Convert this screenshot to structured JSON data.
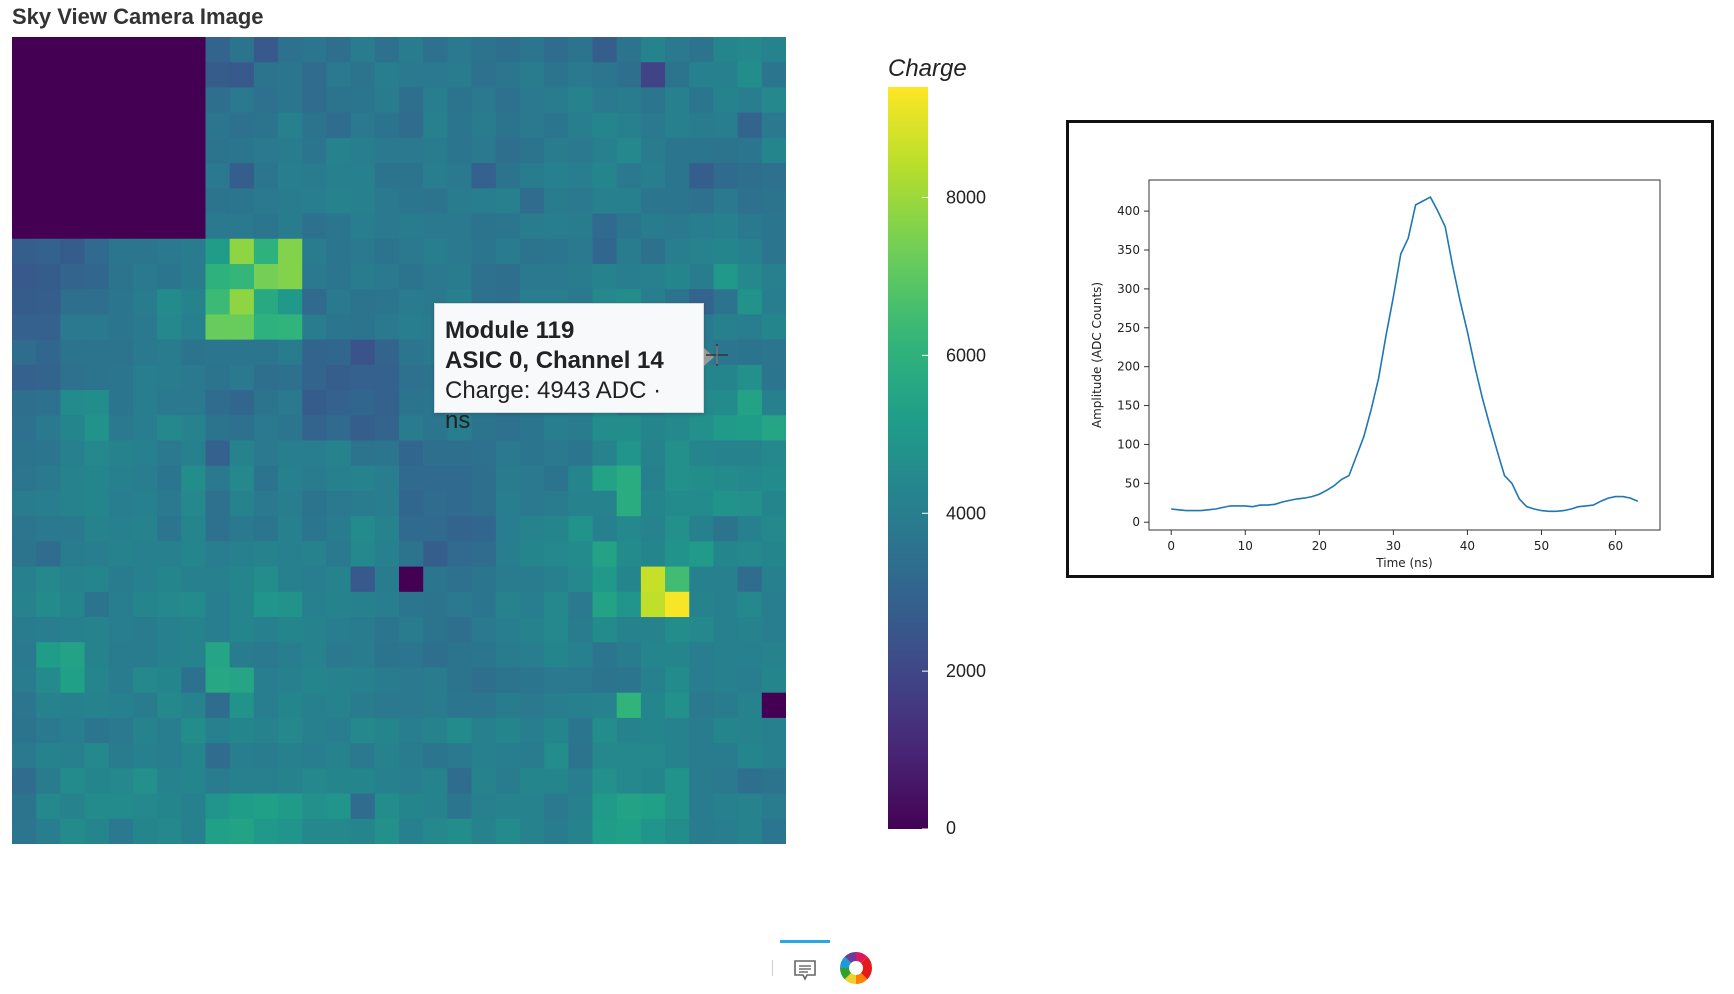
{
  "page": {
    "title": "Sky View Camera Image"
  },
  "camera": {
    "grid_rows": 32,
    "grid_cols": 32,
    "colormap": "viridis",
    "charge_range": [
      0,
      9400
    ],
    "colorbar": {
      "label": "Charge",
      "ticks": [
        "0",
        "2000",
        "4000",
        "6000",
        "8000"
      ],
      "tick_values": [
        0,
        2000,
        4000,
        6000,
        8000
      ]
    },
    "dead_module_value": 0,
    "pixel_values": [
      [
        0,
        0,
        0,
        0,
        0,
        0,
        0,
        0,
        3000,
        3600,
        2600,
        3500,
        3700,
        3400,
        3900,
        3500,
        3900,
        3500,
        3800,
        3600,
        3400,
        3700,
        3300,
        3600,
        2800,
        3600,
        4200,
        3800,
        3600,
        4300,
        4400,
        4200
      ],
      [
        0,
        0,
        0,
        0,
        0,
        0,
        0,
        0,
        2700,
        2600,
        3600,
        3700,
        3300,
        3800,
        3600,
        4000,
        3800,
        3800,
        3900,
        3500,
        3700,
        3900,
        3600,
        3800,
        3700,
        3400,
        1900,
        3600,
        4100,
        4100,
        4600,
        3700
      ],
      [
        0,
        0,
        0,
        0,
        0,
        0,
        0,
        0,
        3400,
        3800,
        3500,
        3700,
        3300,
        3600,
        3700,
        3900,
        3400,
        4000,
        3600,
        3800,
        3500,
        3800,
        3900,
        4200,
        3800,
        3900,
        3700,
        4100,
        3700,
        4200,
        4000,
        4400
      ],
      [
        0,
        0,
        0,
        0,
        0,
        0,
        0,
        0,
        3700,
        3500,
        3600,
        4100,
        3600,
        3300,
        3800,
        3600,
        3300,
        4100,
        3700,
        3900,
        3600,
        3800,
        3700,
        4000,
        4300,
        4100,
        3800,
        4100,
        3900,
        4000,
        3000,
        3800
      ],
      [
        0,
        0,
        0,
        0,
        0,
        0,
        0,
        0,
        3600,
        3700,
        3800,
        3900,
        3700,
        4200,
        4000,
        3800,
        3800,
        3900,
        3700,
        3800,
        3400,
        3600,
        3900,
        3800,
        4100,
        4400,
        3900,
        3700,
        3700,
        3600,
        3700,
        4300
      ],
      [
        0,
        0,
        0,
        0,
        0,
        0,
        0,
        0,
        3800,
        2800,
        3700,
        4000,
        3900,
        4100,
        4100,
        3600,
        3600,
        4000,
        3800,
        2900,
        3600,
        3900,
        4100,
        4000,
        4300,
        3800,
        4000,
        3700,
        2800,
        3200,
        3400,
        3500
      ],
      [
        0,
        0,
        0,
        0,
        0,
        0,
        0,
        0,
        3600,
        3700,
        3800,
        3900,
        4000,
        4200,
        4100,
        3800,
        3700,
        3600,
        3900,
        4000,
        4100,
        3300,
        3900,
        3800,
        4100,
        4100,
        3700,
        3700,
        3500,
        3800,
        3500,
        3600
      ],
      [
        0,
        0,
        0,
        0,
        0,
        0,
        0,
        0,
        3800,
        3800,
        3700,
        3900,
        3500,
        3700,
        4000,
        3800,
        3900,
        3800,
        3800,
        3600,
        3700,
        3900,
        4000,
        3900,
        3200,
        3700,
        3900,
        3800,
        4000,
        4100,
        3800,
        3700
      ],
      [
        2800,
        2900,
        2700,
        3200,
        3700,
        3700,
        3800,
        3900,
        5200,
        7800,
        6000,
        7600,
        3900,
        3700,
        3800,
        3600,
        3800,
        4000,
        3800,
        3700,
        3900,
        3600,
        3700,
        3800,
        3100,
        3900,
        3500,
        4000,
        4200,
        4300,
        4100,
        3700
      ],
      [
        2600,
        2700,
        3000,
        3100,
        3600,
        3800,
        3700,
        3900,
        6000,
        6200,
        7400,
        7600,
        3800,
        3700,
        3900,
        3800,
        3600,
        3800,
        3900,
        3500,
        3400,
        3800,
        3800,
        3900,
        4200,
        4000,
        4100,
        4300,
        3900,
        5000,
        4400,
        4100
      ],
      [
        2700,
        2800,
        3400,
        3400,
        3700,
        3900,
        4500,
        4200,
        6400,
        7800,
        5700,
        5000,
        3200,
        3800,
        3600,
        3700,
        3900,
        3800,
        4100,
        3500,
        3400,
        4000,
        4000,
        3800,
        4400,
        4600,
        4000,
        3600,
        3000,
        3600,
        4800,
        4000
      ],
      [
        2900,
        2900,
        3800,
        3800,
        3700,
        3800,
        4400,
        4100,
        7200,
        7200,
        6000,
        6100,
        3900,
        3700,
        3600,
        3800,
        4000,
        3900,
        3600,
        3800,
        3700,
        3800,
        3900,
        3800,
        4400,
        4100,
        3900,
        4100,
        3800,
        4100,
        4000,
        4300
      ],
      [
        3300,
        3100,
        3600,
        3600,
        3600,
        3800,
        3900,
        3600,
        3700,
        3700,
        3700,
        3900,
        3000,
        3100,
        2400,
        3000,
        3700,
        3800,
        3800,
        3600,
        3700,
        3800,
        3900,
        3800,
        4200,
        4000,
        3900,
        3800,
        3900,
        3700,
        3600,
        3700
      ],
      [
        2900,
        3000,
        3500,
        3600,
        3700,
        4000,
        3900,
        3800,
        3600,
        3800,
        3400,
        3500,
        3000,
        2800,
        2900,
        2900,
        3500,
        3600,
        3700,
        3800,
        3600,
        3500,
        3700,
        3700,
        3600,
        3900,
        3800,
        4300,
        4300,
        4300,
        4700,
        3700
      ],
      [
        3400,
        3500,
        4500,
        4600,
        3700,
        4000,
        3800,
        3800,
        3300,
        3100,
        3600,
        3800,
        2700,
        2900,
        3100,
        2900,
        3600,
        3700,
        3800,
        3900,
        3500,
        3600,
        3700,
        3800,
        4500,
        3800,
        3900,
        4300,
        4400,
        4500,
        5400,
        4100
      ],
      [
        3500,
        3800,
        4300,
        4800,
        3800,
        4000,
        4400,
        4200,
        3600,
        3500,
        3800,
        3700,
        3000,
        3200,
        2800,
        3000,
        3900,
        3700,
        4000,
        3600,
        3500,
        3700,
        4000,
        3900,
        4600,
        4600,
        4300,
        4400,
        4700,
        5100,
        5200,
        5500
      ],
      [
        3600,
        3700,
        4100,
        4400,
        4200,
        4100,
        3800,
        4100,
        2900,
        4200,
        3800,
        4000,
        4000,
        4200,
        3600,
        3700,
        3100,
        3400,
        3400,
        3500,
        3800,
        3700,
        3800,
        3700,
        4200,
        4900,
        4200,
        4700,
        4300,
        4200,
        4200,
        4400
      ],
      [
        3700,
        3800,
        4200,
        4300,
        4100,
        4000,
        3700,
        4600,
        3800,
        4400,
        3600,
        4100,
        3900,
        4100,
        4200,
        4000,
        3200,
        3200,
        3200,
        3400,
        3900,
        3800,
        3600,
        4300,
        5400,
        5800,
        4100,
        4700,
        4600,
        4500,
        4400,
        4500
      ],
      [
        3900,
        4000,
        4200,
        4300,
        4000,
        4100,
        3800,
        4400,
        3500,
        4200,
        3800,
        4000,
        3600,
        3800,
        3900,
        4000,
        3100,
        3300,
        3200,
        3400,
        4000,
        3800,
        3900,
        4200,
        4200,
        5800,
        4300,
        4500,
        4500,
        4800,
        4700,
        4300
      ],
      [
        3700,
        3800,
        3800,
        4200,
        4100,
        4200,
        3700,
        4300,
        3500,
        3800,
        3700,
        4100,
        3700,
        3900,
        4500,
        4200,
        3200,
        3200,
        3000,
        3100,
        4000,
        4200,
        4300,
        4800,
        4100,
        4400,
        4200,
        4700,
        4100,
        3600,
        4100,
        4400
      ],
      [
        3600,
        3300,
        3900,
        4000,
        4200,
        4100,
        4100,
        4300,
        4000,
        4100,
        4200,
        4100,
        4200,
        3800,
        4400,
        4100,
        3600,
        2800,
        3200,
        3300,
        4000,
        4300,
        4400,
        4500,
        5400,
        4500,
        4300,
        4800,
        5100,
        4300,
        4400,
        4300
      ],
      [
        4100,
        4400,
        4200,
        4300,
        3900,
        4100,
        4300,
        4100,
        4100,
        4300,
        4600,
        4100,
        4000,
        4200,
        2600,
        3900,
        0,
        3700,
        3500,
        3700,
        3900,
        3900,
        4100,
        4400,
        5000,
        4300,
        8600,
        6500,
        4100,
        4100,
        3300,
        4100
      ],
      [
        4200,
        4500,
        4300,
        3600,
        4000,
        4300,
        4400,
        4500,
        4000,
        4300,
        4900,
        4800,
        4100,
        4200,
        4100,
        4000,
        3700,
        3600,
        3800,
        3700,
        4200,
        4000,
        4400,
        3800,
        5400,
        4900,
        8500,
        9300,
        4200,
        4100,
        4400,
        4000
      ],
      [
        3900,
        4000,
        4100,
        4200,
        4000,
        3900,
        4100,
        4200,
        4000,
        4300,
        4100,
        4300,
        4200,
        4000,
        3900,
        3700,
        3900,
        3600,
        3400,
        3800,
        4000,
        4200,
        4400,
        3900,
        4500,
        4200,
        4200,
        4600,
        4400,
        4100,
        4200,
        4000
      ],
      [
        3800,
        5200,
        5400,
        4200,
        3900,
        3900,
        4100,
        4200,
        5500,
        3900,
        3800,
        4000,
        4200,
        3800,
        3900,
        3600,
        3700,
        3400,
        3600,
        3700,
        3900,
        4000,
        4300,
        4100,
        3700,
        3900,
        4300,
        4300,
        4000,
        4100,
        4100,
        4200
      ],
      [
        3900,
        4500,
        5300,
        4300,
        3900,
        4400,
        4300,
        3500,
        5600,
        5500,
        4000,
        4100,
        4300,
        4200,
        4100,
        3900,
        3800,
        3900,
        3600,
        3400,
        3600,
        3700,
        3800,
        3800,
        3600,
        3700,
        4100,
        4500,
        4000,
        4100,
        4000,
        4300
      ],
      [
        3700,
        4200,
        4100,
        4200,
        4100,
        3900,
        4400,
        4200,
        3300,
        4800,
        4000,
        4300,
        4100,
        4200,
        3900,
        3800,
        3800,
        3900,
        3700,
        3700,
        3900,
        3800,
        4000,
        4100,
        4200,
        6100,
        4300,
        4700,
        3800,
        3900,
        4200,
        0
      ],
      [
        3600,
        3800,
        4000,
        3700,
        3800,
        4200,
        4000,
        4600,
        4100,
        4300,
        4200,
        4400,
        4100,
        4000,
        4400,
        4300,
        4000,
        4200,
        4500,
        4100,
        4300,
        4000,
        4300,
        3700,
        4600,
        4200,
        4300,
        4200,
        3900,
        4300,
        4200,
        4100
      ],
      [
        3800,
        4200,
        4100,
        4400,
        3900,
        4100,
        4000,
        4300,
        3300,
        4000,
        3900,
        4100,
        4000,
        4200,
        3800,
        4200,
        3900,
        3700,
        3800,
        4100,
        4000,
        3900,
        4600,
        3600,
        4400,
        4400,
        4400,
        4200,
        3900,
        3900,
        4300,
        4100
      ],
      [
        3300,
        3900,
        4500,
        4300,
        4400,
        4700,
        4200,
        4300,
        3900,
        4100,
        4100,
        4200,
        4400,
        4300,
        4300,
        4100,
        4000,
        4200,
        3300,
        4200,
        3900,
        4300,
        4300,
        4000,
        4700,
        4400,
        4300,
        4800,
        3900,
        3800,
        3400,
        3600
      ],
      [
        3600,
        4400,
        4200,
        4500,
        4500,
        4400,
        4300,
        4100,
        4900,
        5200,
        5300,
        5100,
        4700,
        4900,
        3300,
        4600,
        4300,
        4200,
        3700,
        4100,
        4200,
        4200,
        3800,
        4100,
        5100,
        5400,
        5300,
        4800,
        3900,
        4100,
        4200,
        3900
      ],
      [
        3700,
        4000,
        4500,
        4300,
        3800,
        4300,
        4400,
        4100,
        5300,
        5400,
        5000,
        4900,
        4400,
        4400,
        4300,
        4700,
        4100,
        4400,
        4600,
        4200,
        4500,
        4200,
        3900,
        4200,
        5200,
        5300,
        4900,
        4600,
        3900,
        4000,
        4200,
        3700
      ]
    ],
    "tooltip": {
      "module": "Module 119",
      "asic_channel": "ASIC 0, Channel 14",
      "charge": "Charge: 4943 ADC · ns"
    }
  },
  "toolbar": {
    "tools": [
      {
        "icon": "comment-hover-tool-icon"
      },
      {
        "icon": "bokeh-logo-icon"
      }
    ]
  },
  "waveform_plot": {
    "chart_data": {
      "type": "line",
      "xlabel": "Time (ns)",
      "ylabel": "Amplitude (ADC Counts)",
      "xlim": [
        -3,
        66
      ],
      "ylim": [
        -10,
        440
      ],
      "x_ticks": [
        0,
        10,
        20,
        30,
        40,
        50,
        60
      ],
      "y_ticks": [
        0,
        50,
        100,
        150,
        200,
        250,
        300,
        350,
        400
      ],
      "series": [
        {
          "color": "#1f77b4",
          "x": [
            0,
            1,
            2,
            3,
            4,
            5,
            6,
            7,
            8,
            9,
            10,
            11,
            12,
            13,
            14,
            15,
            16,
            17,
            18,
            19,
            20,
            21,
            22,
            23,
            24,
            25,
            26,
            27,
            28,
            29,
            30,
            31,
            32,
            33,
            34,
            35,
            36,
            37,
            38,
            39,
            40,
            41,
            42,
            43,
            44,
            45,
            46,
            47,
            48,
            49,
            50,
            51,
            52,
            53,
            54,
            55,
            56,
            57,
            58,
            59,
            60,
            61,
            62,
            63
          ],
          "y": [
            17,
            16,
            15,
            15,
            15,
            16,
            17,
            19,
            21,
            21,
            21,
            20,
            22,
            22,
            23,
            26,
            28,
            30,
            31,
            33,
            36,
            41,
            47,
            55,
            60,
            85,
            110,
            145,
            185,
            240,
            290,
            345,
            365,
            408,
            413,
            418,
            400,
            380,
            330,
            285,
            245,
            200,
            160,
            125,
            92,
            60,
            50,
            30,
            20,
            17,
            15,
            14,
            14,
            15,
            17,
            20,
            21,
            22,
            27,
            31,
            33,
            33,
            31,
            27
          ]
        }
      ]
    }
  }
}
